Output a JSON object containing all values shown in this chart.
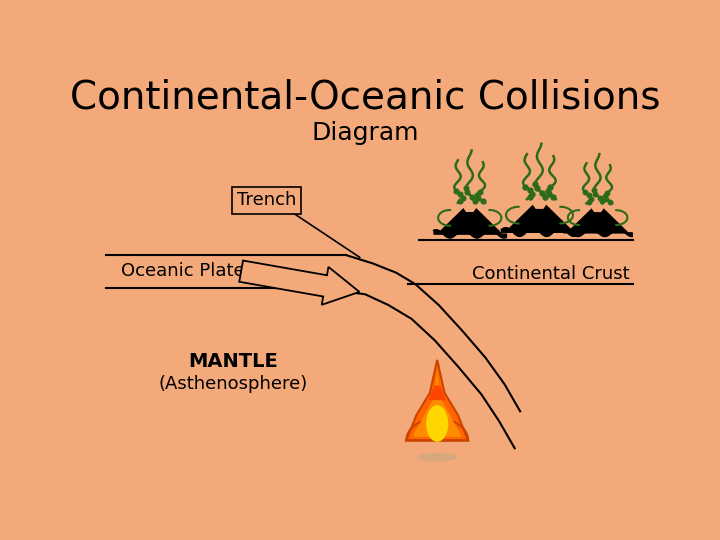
{
  "title": "Continental-Oceanic Collisions",
  "subtitle": "Diagram",
  "bg_color": "#F4A97A",
  "text_color": "#000000",
  "title_fontsize": 28,
  "subtitle_fontsize": 18,
  "label_fontsize": 13,
  "labels": {
    "trench": "Trench",
    "oceanic_plate": "Oceanic Plate",
    "continental_crust": "Continental Crust",
    "mantle": "MANTLE",
    "asthenosphere": "(Asthenosphere)"
  },
  "volcano_color": "#000000",
  "fume_color": "#2d6b1a",
  "flame_outer": "#FF6600",
  "flame_mid": "#FF8C00",
  "flame_inner": "#FFD700",
  "flame_shadow": "#C4A882"
}
